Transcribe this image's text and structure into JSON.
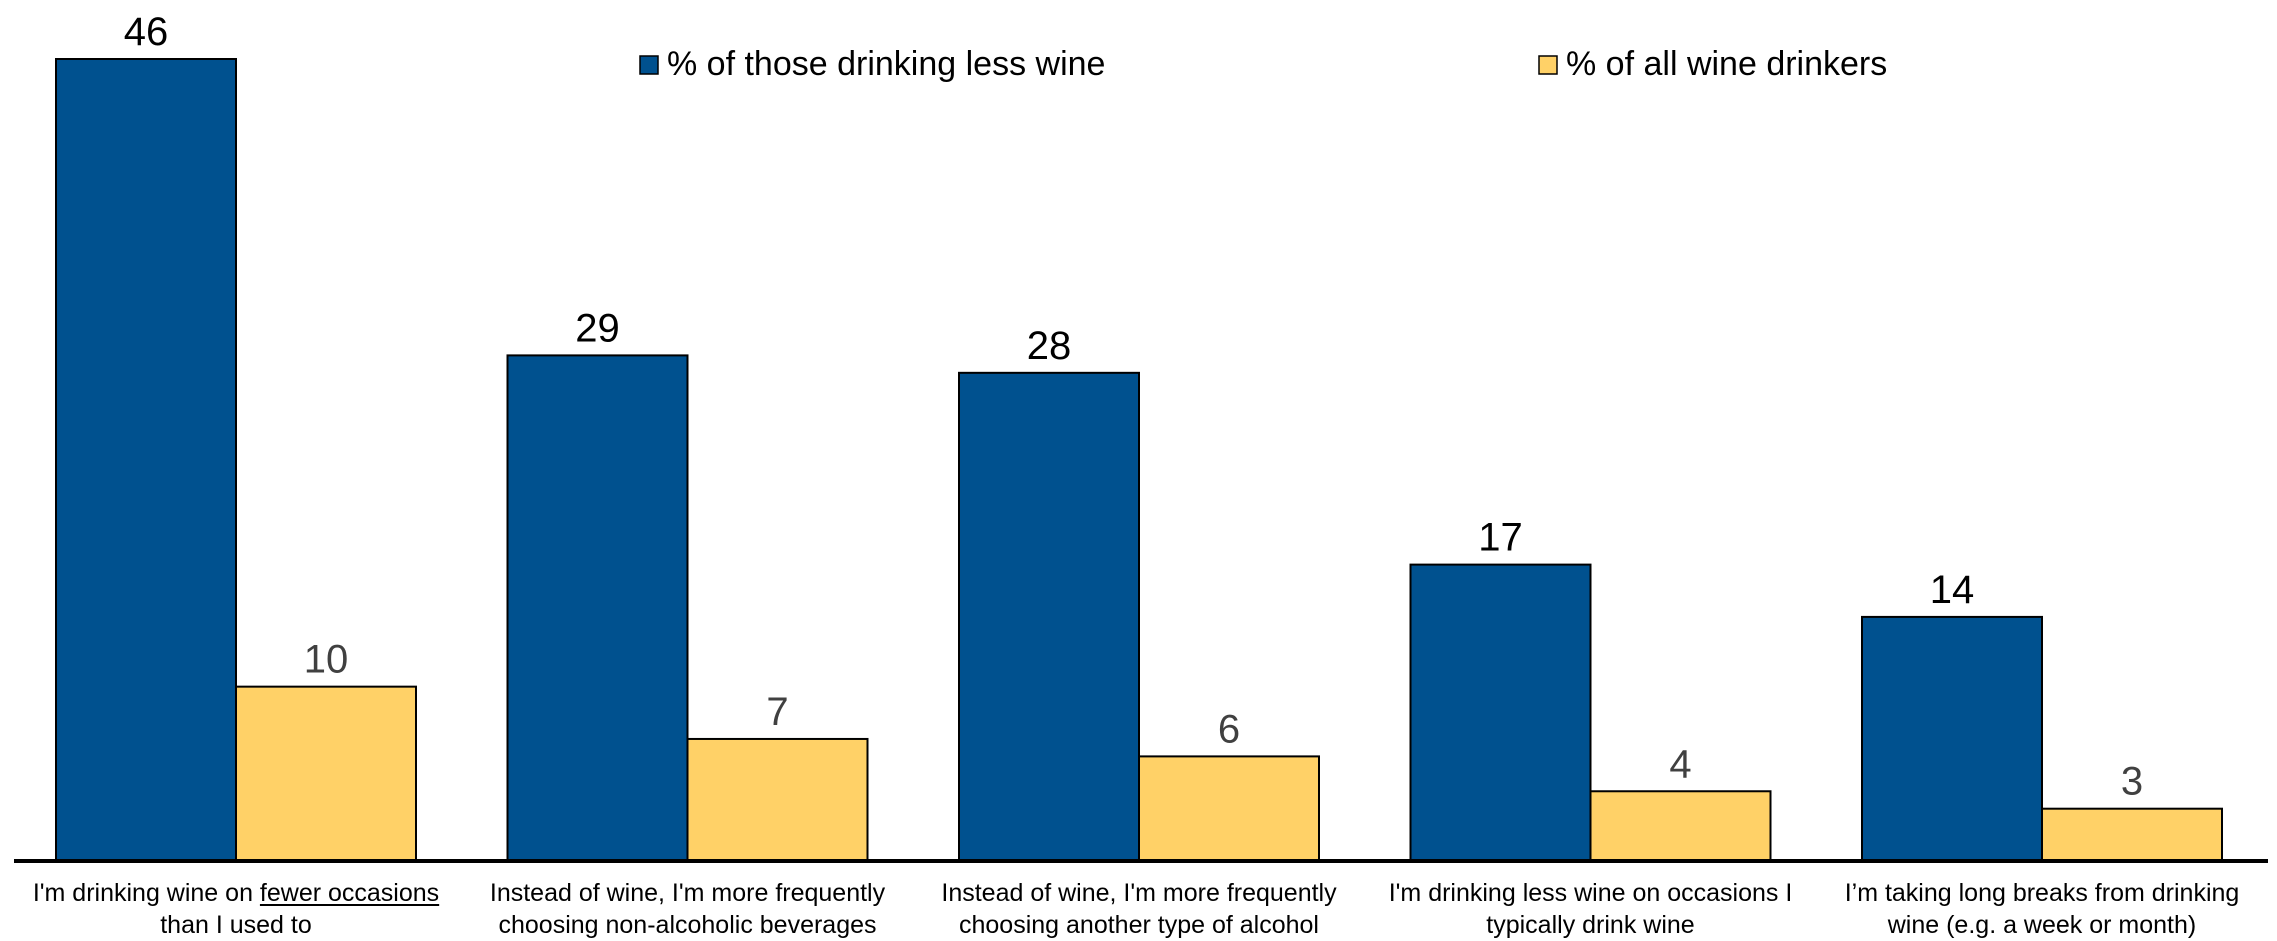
{
  "chart_data": {
    "type": "bar",
    "categories": [
      "I'm drinking wine on fewer occasions than I used to",
      "Instead of wine, I'm more frequently choosing non-alcoholic beverages",
      "Instead of wine, I'm more frequently choosing another type of alcohol",
      "I'm drinking less wine on occasions I typically drink wine",
      "I'm taking long breaks from drinking wine (e.g. a week or month)"
    ],
    "category_labels": [
      {
        "line1_pre": "I'm drinking wine on ",
        "line1_underlined": "fewer occasions",
        "line1_post": "",
        "line2": "than I used to"
      },
      {
        "line1_pre": "Instead of wine, I'm more frequently",
        "line1_underlined": "",
        "line1_post": "",
        "line2": "choosing non-alcoholic beverages"
      },
      {
        "line1_pre": "Instead of wine, I'm more frequently",
        "line1_underlined": "",
        "line1_post": "",
        "line2": "choosing another type of alcohol"
      },
      {
        "line1_pre": "I'm drinking less wine on occasions I",
        "line1_underlined": "",
        "line1_post": "",
        "line2": "typically drink wine"
      },
      {
        "line1_pre": "I’m taking long breaks from drinking",
        "line1_underlined": "",
        "line1_post": "",
        "line2": "wine (e.g. a week or month)"
      }
    ],
    "series": [
      {
        "name": "% of those drinking less wine",
        "values": [
          46,
          29,
          28,
          17,
          14
        ],
        "color": "#00518F"
      },
      {
        "name": "% of all wine drinkers",
        "values": [
          10,
          7,
          6,
          4,
          3
        ],
        "color": "#FFD167"
      }
    ],
    "ylim": [
      0,
      46
    ],
    "grid": false,
    "legend_position": "top-center",
    "data_label_colors": [
      "#000000",
      "#404040"
    ]
  }
}
